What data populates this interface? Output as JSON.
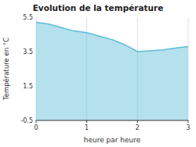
{
  "chart_data": {
    "type": "area",
    "title": "Evolution de la température",
    "x_label": "heure par heure",
    "y_label": "Température en °C",
    "x": [
      0,
      0.25,
      0.5,
      0.75,
      1.0,
      1.25,
      1.5,
      1.75,
      2.0,
      2.25,
      2.5,
      2.75,
      3.0
    ],
    "series": [
      {
        "color": "#5bbcd6",
        "values": [
          5.2,
          5.1,
          4.9,
          4.7,
          4.6,
          4.4,
          4.2,
          3.9,
          3.5,
          3.55,
          3.6,
          3.7,
          3.8
        ]
      }
    ],
    "xlim": [
      0,
      3
    ],
    "ylim": [
      -0.5,
      5.5
    ],
    "xticks": [
      0,
      1,
      2,
      3
    ],
    "yticks": [
      -0.5,
      1.5,
      3.5,
      5.5
    ],
    "grid": "x"
  }
}
